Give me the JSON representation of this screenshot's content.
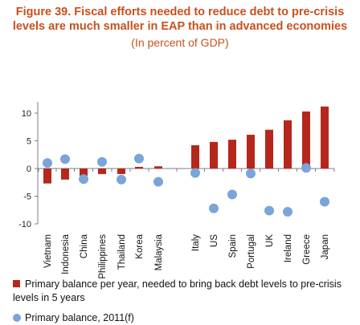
{
  "title_line1": "Figure 39. Fiscal efforts needed to reduce debt to pre-crisis",
  "title_line2": "levels are much smaller in EAP than in advanced economies",
  "subtitle": "(In percent of GDP)",
  "colors": {
    "title": "#c8501e",
    "bar": "#b5271b",
    "dot": "#7ba4d9"
  },
  "chart_data": {
    "type": "bar",
    "categories": [
      "Vietnam",
      "Indonesia",
      "China",
      "Philippines",
      "Thailand",
      "Korea",
      "Malaysia",
      "Italy",
      "US",
      "Spain",
      "Portugal",
      "UK",
      "Ireland",
      "Greece",
      "Japan"
    ],
    "group_gap_after": "Malaysia",
    "series": [
      {
        "name": "Primary balance per year, needed to bring back debt levels to pre-crisis levels in 5 years",
        "kind": "bar",
        "values": [
          -2.7,
          -2.0,
          -1.3,
          -1.0,
          -1.0,
          0.3,
          0.4,
          4.2,
          4.8,
          5.2,
          6.1,
          7.0,
          8.7,
          10.3,
          11.2
        ]
      },
      {
        "name": "Primary balance, 2011(f)",
        "kind": "scatter",
        "values": [
          1.0,
          1.7,
          -1.9,
          1.2,
          -2.0,
          1.8,
          -2.4,
          -0.8,
          -7.2,
          -4.7,
          -0.9,
          -7.6,
          -7.8,
          0.1,
          -6.0
        ]
      }
    ],
    "yticks": [
      "10",
      "5",
      "0",
      "-5",
      "-10"
    ],
    "ylim": [
      -10,
      12
    ],
    "grid": false,
    "legend": "bottom"
  }
}
